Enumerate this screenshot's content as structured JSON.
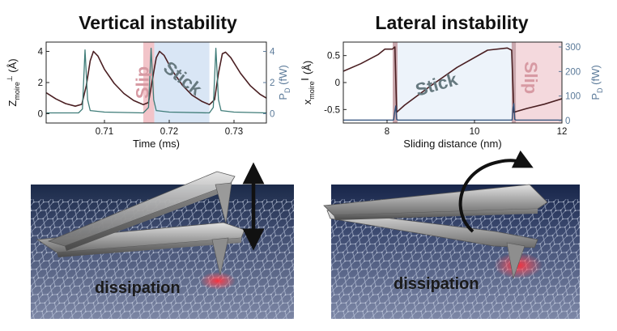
{
  "titles": {
    "left": "Vertical instability",
    "right": "Lateral instability"
  },
  "colors": {
    "primary_line": "#4a1f22",
    "secondary_line": "#3f7c78",
    "slip_band": "#f2c4c9",
    "stick_band": "#d9e6f5",
    "slip_text": "#d79aa3",
    "stick_text": "#66797f",
    "right_axis": "#5b7a99"
  },
  "chart_data": [
    {
      "type": "line",
      "xlabel": "Time (ms)",
      "ylabel_left": {
        "main": "Z",
        "sub": "moire",
        "sup": "⊥",
        "unit": "(Å)"
      },
      "ylabel_right": {
        "main": "P",
        "sub": "D",
        "unit": "(fW)"
      },
      "xlim": [
        0.701,
        0.735
      ],
      "ylim_left": [
        -0.6,
        4.6
      ],
      "ylim_right": [
        -0.6,
        4.6
      ],
      "x_ticks": [
        0.71,
        0.72,
        0.73
      ],
      "x_tick_labels": [
        "0.71",
        "0.72",
        "0.73"
      ],
      "y_ticks_left": [
        0,
        2,
        4
      ],
      "y_tick_labels_left": [
        "0",
        "2",
        "4"
      ],
      "y_ticks_right": [
        0,
        2,
        4
      ],
      "y_tick_labels_right": [
        "0",
        "2",
        "4"
      ],
      "period_ms": 0.0095,
      "series": [
        {
          "axis": "left",
          "color": "#4a1f22",
          "points": [
            [
              0.701,
              1.35
            ],
            [
              0.7025,
              0.95
            ],
            [
              0.704,
              0.65
            ],
            [
              0.7055,
              0.48
            ],
            [
              0.7065,
              0.6
            ],
            [
              0.7072,
              1.8
            ],
            [
              0.7078,
              3.4
            ],
            [
              0.7083,
              4.0
            ],
            [
              0.709,
              3.7
            ],
            [
              0.71,
              2.85
            ],
            [
              0.7115,
              1.95
            ],
            [
              0.713,
              1.3
            ],
            [
              0.7145,
              0.85
            ],
            [
              0.716,
              0.58
            ],
            [
              0.7168,
              0.72
            ],
            [
              0.7174,
              2.2
            ],
            [
              0.718,
              3.6
            ],
            [
              0.7185,
              4.0
            ],
            [
              0.7192,
              3.75
            ],
            [
              0.7205,
              2.75
            ],
            [
              0.722,
              1.85
            ],
            [
              0.7235,
              1.2
            ],
            [
              0.725,
              0.8
            ],
            [
              0.7262,
              0.58
            ],
            [
              0.727,
              0.9
            ],
            [
              0.7276,
              2.6
            ],
            [
              0.7282,
              3.85
            ],
            [
              0.7287,
              3.95
            ],
            [
              0.7295,
              3.6
            ],
            [
              0.731,
              2.6
            ],
            [
              0.7325,
              1.8
            ],
            [
              0.734,
              1.25
            ],
            [
              0.735,
              1.0
            ]
          ]
        },
        {
          "axis": "right",
          "color": "#3f7c78",
          "points": [
            [
              0.701,
              0.05
            ],
            [
              0.706,
              0.05
            ],
            [
              0.7066,
              0.3
            ],
            [
              0.707,
              4.1
            ],
            [
              0.7074,
              0.9
            ],
            [
              0.7078,
              0.2
            ],
            [
              0.71,
              0.1
            ],
            [
              0.716,
              0.05
            ],
            [
              0.7168,
              0.4
            ],
            [
              0.7172,
              4.2
            ],
            [
              0.7176,
              0.9
            ],
            [
              0.718,
              0.2
            ],
            [
              0.72,
              0.1
            ],
            [
              0.7262,
              0.05
            ],
            [
              0.7268,
              0.4
            ],
            [
              0.7272,
              4.2
            ],
            [
              0.7276,
              0.9
            ],
            [
              0.728,
              0.2
            ],
            [
              0.73,
              0.1
            ],
            [
              0.735,
              0.05
            ]
          ]
        }
      ],
      "bands": [
        {
          "label": "Slip",
          "x": [
            0.716,
            0.7177
          ],
          "color": "#f2c4c9"
        },
        {
          "label": "Stick",
          "x": [
            0.7177,
            0.7262
          ],
          "color": "#d9e6f5"
        }
      ]
    },
    {
      "type": "line",
      "xlabel": "Sliding distance (nm)",
      "ylabel_left": {
        "main": "x",
        "sub": "moire",
        "sup": "∥",
        "unit": "(Å)"
      },
      "ylabel_right": {
        "main": "P",
        "sub": "D",
        "unit": "(fW)"
      },
      "xlim": [
        7,
        12
      ],
      "ylim_left": [
        -0.75,
        0.75
      ],
      "ylim_right": [
        -10,
        320
      ],
      "x_ticks": [
        8,
        10,
        12
      ],
      "x_tick_labels": [
        "8",
        "10",
        "12"
      ],
      "y_ticks_left": [
        0.5,
        0,
        -0.5
      ],
      "y_tick_labels_left": [
        "0.5",
        "0",
        "-0.5"
      ],
      "y_ticks_right": [
        0,
        100,
        200,
        300
      ],
      "y_tick_labels_right": [
        "0",
        "100",
        "200",
        "300"
      ],
      "series": [
        {
          "axis": "left",
          "color": "#4a1f22",
          "points": [
            [
              7.0,
              0.21
            ],
            [
              7.4,
              0.35
            ],
            [
              7.8,
              0.52
            ],
            [
              7.95,
              0.62
            ],
            [
              8.12,
              0.62
            ],
            [
              8.18,
              0.66
            ],
            [
              8.22,
              -0.55
            ],
            [
              8.4,
              -0.42
            ],
            [
              9.0,
              -0.06
            ],
            [
              9.6,
              0.28
            ],
            [
              10.3,
              0.6
            ],
            [
              10.75,
              0.64
            ],
            [
              10.85,
              0.6
            ],
            [
              10.9,
              -0.55
            ],
            [
              11.2,
              -0.48
            ],
            [
              11.6,
              -0.4
            ],
            [
              12.0,
              -0.3
            ]
          ]
        },
        {
          "axis": "right",
          "color": "#2e4f7a",
          "points": [
            [
              7.0,
              2
            ],
            [
              8.15,
              2
            ],
            [
              8.18,
              40
            ],
            [
              8.2,
              60
            ],
            [
              8.22,
              5
            ],
            [
              8.25,
              2
            ],
            [
              10.86,
              2
            ],
            [
              10.88,
              50
            ],
            [
              10.9,
              70
            ],
            [
              10.92,
              5
            ],
            [
              10.95,
              2
            ],
            [
              12.0,
              2
            ]
          ]
        }
      ],
      "bands": [
        {
          "label": "",
          "x": [
            8.13,
            8.24
          ],
          "color": "#c9a7ad"
        },
        {
          "label": "Stick",
          "x": [
            8.24,
            10.85
          ],
          "color": "#edf3fa"
        },
        {
          "label": "",
          "x": [
            10.85,
            10.95
          ],
          "color": "#c9a7ad"
        },
        {
          "label": "Slip",
          "x": [
            10.95,
            12.0
          ],
          "color": "#f4d9dd"
        }
      ]
    }
  ],
  "panels": {
    "left": {
      "dissipation_label": "dissipation"
    },
    "right": {
      "dissipation_label": "dissipation"
    }
  }
}
